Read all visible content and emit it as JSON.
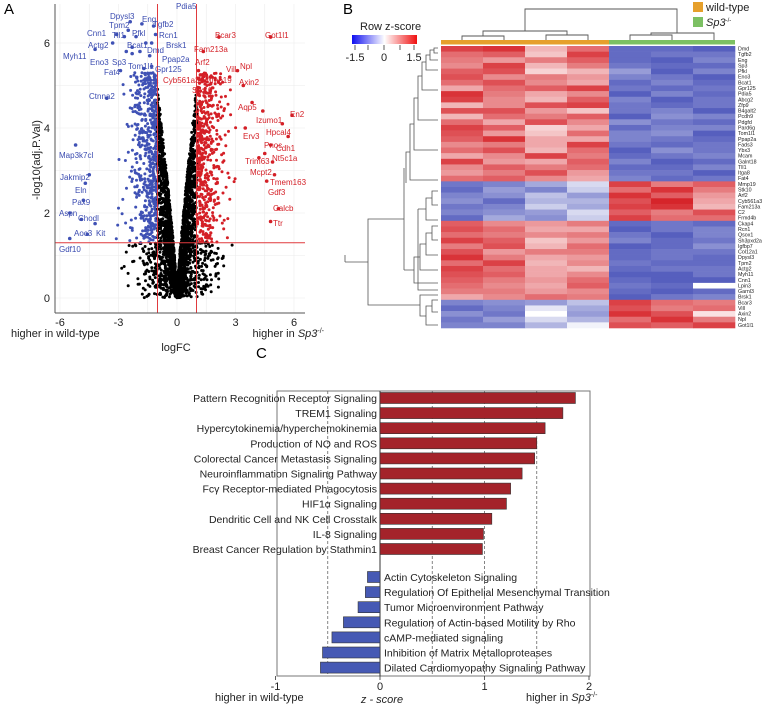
{
  "panels": {
    "a": "A",
    "b": "B",
    "c": "C"
  },
  "chart_data": [
    {
      "type": "scatter",
      "title": "",
      "xlabel": "logFC",
      "ylabel": "-log10(adj.P.Val)",
      "xlim": [
        -6.3,
        6.3
      ],
      "ylim": [
        0,
        6.6
      ],
      "xticks": [
        "-6",
        "-3",
        "0",
        "3",
        "6"
      ],
      "yticks": [
        "0",
        "2",
        "4",
        "6"
      ],
      "x_left_annotation": "higher in wild-type",
      "x_right_annotation_prefix": "higher in ",
      "x_right_annotation_genotype": "Sp3",
      "x_right_annotation_sup": "-/-",
      "thresholds": {
        "logFC": [
          -1,
          1
        ],
        "neg_log10_p": 1.3
      },
      "grid": true,
      "colors": {
        "down": "#3f51b5",
        "up": "#d41f26",
        "ns": "#000000",
        "threshold": "#e03a3e"
      },
      "labeled_down": [
        {
          "gene": "Dpysl3",
          "logFC": -2.4,
          "p": 6.5
        },
        {
          "gene": "Tpm2",
          "logFC": -2.5,
          "p": 6.3
        },
        {
          "gene": "Eng",
          "logFC": -1.8,
          "p": 6.45
        },
        {
          "gene": "Tgfb2",
          "logFC": -1.2,
          "p": 6.4
        },
        {
          "gene": "Pdia5",
          "logFC": -1.1,
          "p": 6.2
        },
        {
          "gene": "Cnn1",
          "logFC": -3.1,
          "p": 6.2
        },
        {
          "gene": "Tll1",
          "logFC": -2.7,
          "p": 6.15
        },
        {
          "gene": "Pfkl",
          "logFC": -2.1,
          "p": 6.15
        },
        {
          "gene": "Rcn1",
          "logFC": -1.3,
          "p": 6.0
        },
        {
          "gene": "Actg2",
          "logFC": -3.3,
          "p": 6.0
        },
        {
          "gene": "Bcat1",
          "logFC": -2.3,
          "p": 5.9
        },
        {
          "gene": "Brsk1",
          "logFC": -1.6,
          "p": 6.0
        },
        {
          "gene": "Dmd",
          "logFC": -1.9,
          "p": 5.8
        },
        {
          "gene": "Myh11",
          "logFC": -4.2,
          "p": 5.85
        },
        {
          "gene": "Eno3",
          "logFC": -2.6,
          "p": 5.8
        },
        {
          "gene": "Sp3",
          "logFC": -2.3,
          "p": 5.75
        },
        {
          "gene": "Ppap2a",
          "logFC": -1.4,
          "p": 5.7
        },
        {
          "gene": "Tom1l1",
          "logFC": -1.7,
          "p": 5.4
        },
        {
          "gene": "Gpr125",
          "logFC": -1.3,
          "p": 5.45
        },
        {
          "gene": "Fat4",
          "logFC": -2.9,
          "p": 5.35
        },
        {
          "gene": "Ctnna2",
          "logFC": -3.6,
          "p": 4.7
        },
        {
          "gene": "Map3k7cl",
          "logFC": -5.2,
          "p": 3.6
        },
        {
          "gene": "Jakmip2",
          "logFC": -4.5,
          "p": 2.9
        },
        {
          "gene": "Eln",
          "logFC": -4.7,
          "p": 2.7
        },
        {
          "gene": "Pax9",
          "logFC": -4.8,
          "p": 2.3
        },
        {
          "gene": "Aspn",
          "logFC": -5.5,
          "p": 2.0
        },
        {
          "gene": "Chodl",
          "logFC": -4.9,
          "p": 1.85
        },
        {
          "gene": "Kit",
          "logFC": -4.2,
          "p": 1.75
        },
        {
          "gene": "Aoc3",
          "logFC": -4.6,
          "p": 1.5
        },
        {
          "gene": "Gdf10",
          "logFC": -5.5,
          "p": 1.4
        }
      ],
      "labeled_up": [
        {
          "gene": "Bcar3",
          "logFC": 2.15,
          "p": 6.14
        },
        {
          "gene": "Got1l1",
          "logFC": 4.8,
          "p": 6.14
        },
        {
          "gene": "Fam213a",
          "logFC": 1.35,
          "p": 5.8
        },
        {
          "gene": "Arf2",
          "logFC": 1.1,
          "p": 5.35
        },
        {
          "gene": "Vill",
          "logFC": 2.7,
          "p": 5.2
        },
        {
          "gene": "Npl",
          "logFC": 3.1,
          "p": 5.35
        },
        {
          "gene": "Cyb561a3",
          "logFC": 1.2,
          "p": 5.25
        },
        {
          "gene": "Mmp19",
          "logFC": 1.3,
          "p": 5.15
        },
        {
          "gene": "Axin2",
          "logFC": 3.4,
          "p": 5.0
        },
        {
          "gene": "Stk10",
          "logFC": 1.1,
          "p": 4.95
        },
        {
          "gene": "Aqp5",
          "logFC": 3.85,
          "p": 4.6
        },
        {
          "gene": "Izumo1",
          "logFC": 4.4,
          "p": 4.4
        },
        {
          "gene": "En2",
          "logFC": 5.9,
          "p": 4.3
        },
        {
          "gene": "Hpcal4",
          "logFC": 5.4,
          "p": 4.1
        },
        {
          "gene": "Erv3",
          "logFC": 3.5,
          "p": 4.0
        },
        {
          "gene": "Pnoc",
          "logFC": 4.8,
          "p": 3.6
        },
        {
          "gene": "Cdh1",
          "logFC": 5.7,
          "p": 3.8
        },
        {
          "gene": "Nt5c1a",
          "logFC": 4.9,
          "p": 3.2
        },
        {
          "gene": "Trim63",
          "logFC": 4.5,
          "p": 3.4
        },
        {
          "gene": "Mcpt2",
          "logFC": 4.2,
          "p": 3.3
        },
        {
          "gene": "Tmem163",
          "logFC": 5.0,
          "p": 2.9
        },
        {
          "gene": "Gdf3",
          "logFC": 4.6,
          "p": 2.75
        },
        {
          "gene": "Calcb",
          "logFC": 5.2,
          "p": 2.1
        },
        {
          "gene": "Ttr",
          "logFC": 4.8,
          "p": 1.8
        }
      ]
    },
    {
      "type": "heatmap",
      "legend_title": "Row z-score",
      "scale_ticks": [
        "-1.5",
        "0",
        "1.5"
      ],
      "zlim": [
        -1.5,
        1.5
      ],
      "colors": {
        "low": "#3c46b4",
        "mid": "#ffffff",
        "high": "#d7232a"
      },
      "groups": [
        {
          "name": "wild-type",
          "color": "#e6a02c",
          "n": 4
        },
        {
          "name": "Sp3",
          "sup": "-/-",
          "color": "#7cc063",
          "n": 3
        }
      ],
      "rows": [
        "Dmd",
        "Tgfb2",
        "Eng",
        "Sp3",
        "Pfkl",
        "Eno3",
        "Bcat1",
        "Gpr125",
        "Pdia5",
        "Abcg2",
        "Zfp9",
        "B4galt2",
        "Pcdh9",
        "Pdgfd",
        "Pard6g",
        "Tom1l1",
        "Ppap2a",
        "Fads3",
        "Ybx3",
        "Mcam",
        "Galnt18",
        "Tll1",
        "Itga8",
        "Fat4",
        "Mmp19",
        "Stk10",
        "Arf2",
        "Cyb561a3",
        "Fam213a",
        "C2",
        "Frmd4b",
        "Ckap4",
        "Rcn1",
        "Qsox1",
        "Sh3pxd2a",
        "Igfbp7",
        "Col12a1",
        "Dpysl3",
        "Tpm2",
        "Actg2",
        "Myh11",
        "Cnn1",
        "Lpin3",
        "Garnl3",
        "Brsk1",
        "Bcar3",
        "Vill",
        "Axin2",
        "Npl",
        "Got1l1"
      ],
      "values": [
        [
          1.3,
          1.4,
          0.5,
          1.0,
          -1.2,
          -1.2,
          -1.3
        ],
        [
          1.0,
          1.1,
          0.4,
          1.3,
          -1.2,
          -1.1,
          -1.1
        ],
        [
          0.9,
          0.7,
          0.9,
          1.1,
          -1.2,
          -1.3,
          -1.0
        ],
        [
          0.8,
          1.3,
          0.5,
          0.9,
          -1.1,
          -1.2,
          -1.2
        ],
        [
          1.1,
          1.2,
          0.3,
          0.5,
          -0.8,
          -1.3,
          -1.0
        ],
        [
          1.2,
          0.8,
          0.9,
          0.7,
          -1.0,
          -1.1,
          -1.3
        ],
        [
          1.0,
          1.2,
          0.8,
          0.6,
          -1.2,
          -1.0,
          -1.2
        ],
        [
          0.6,
          1.0,
          1.1,
          1.3,
          -1.1,
          -1.2,
          -1.1
        ],
        [
          1.4,
          0.9,
          0.6,
          0.8,
          -1.3,
          -1.0,
          -1.2
        ],
        [
          1.3,
          0.8,
          0.5,
          1.1,
          -1.0,
          -1.3,
          -1.1
        ],
        [
          0.5,
          0.8,
          1.2,
          1.3,
          -1.1,
          -1.2,
          -1.1
        ],
        [
          1.2,
          1.2,
          0.7,
          0.4,
          -1.1,
          -1.0,
          -1.3
        ],
        [
          0.5,
          1.0,
          0.9,
          1.1,
          -1.3,
          -0.9,
          -1.0
        ],
        [
          1.0,
          0.6,
          1.2,
          0.8,
          -0.9,
          -1.1,
          -1.2
        ],
        [
          1.3,
          1.1,
          0.3,
          0.6,
          -1.2,
          -1.0,
          -1.0
        ],
        [
          1.2,
          0.7,
          0.4,
          1.0,
          -1.0,
          -0.9,
          -1.3
        ],
        [
          1.1,
          1.4,
          0.6,
          0.6,
          -1.0,
          -1.1,
          -1.2
        ],
        [
          0.8,
          0.9,
          0.6,
          1.3,
          -1.1,
          -1.2,
          -1.1
        ],
        [
          1.0,
          1.2,
          0.5,
          1.0,
          -1.3,
          -0.9,
          -1.1
        ],
        [
          0.6,
          0.8,
          1.3,
          0.9,
          -1.2,
          -1.1,
          -1.0
        ],
        [
          1.3,
          0.7,
          0.6,
          1.1,
          -1.0,
          -1.3,
          -1.2
        ],
        [
          0.8,
          1.1,
          0.9,
          1.0,
          -1.2,
          -1.2,
          -1.0
        ],
        [
          0.7,
          0.9,
          1.2,
          0.7,
          -1.1,
          -1.1,
          -1.3
        ],
        [
          1.0,
          1.1,
          0.8,
          0.6,
          -1.0,
          -1.2,
          -1.1
        ],
        [
          -1.1,
          -1.0,
          -0.7,
          -0.3,
          1.3,
          0.9,
          1.1
        ],
        [
          -1.2,
          -0.8,
          -1.0,
          -0.4,
          1.0,
          1.4,
          0.9
        ],
        [
          -1.0,
          -0.9,
          -0.5,
          -0.8,
          1.4,
          1.1,
          0.7
        ],
        [
          -0.9,
          -1.2,
          -0.6,
          -0.6,
          1.2,
          1.5,
          0.6
        ],
        [
          -1.1,
          -1.0,
          -0.4,
          -0.7,
          1.3,
          1.4,
          0.5
        ],
        [
          -1.0,
          -0.9,
          -0.8,
          -0.3,
          1.1,
          0.9,
          1.2
        ],
        [
          -1.2,
          -0.7,
          -0.9,
          -0.4,
          1.3,
          1.0,
          1.0
        ],
        [
          1.1,
          0.8,
          0.7,
          0.9,
          -1.2,
          -1.1,
          -1.2
        ],
        [
          1.2,
          1.0,
          0.6,
          0.6,
          -1.3,
          -1.1,
          -1.0
        ],
        [
          1.0,
          0.9,
          0.8,
          0.9,
          -1.1,
          -1.3,
          -1.0
        ],
        [
          1.3,
          1.1,
          0.4,
          0.7,
          -1.0,
          -1.2,
          -1.1
        ],
        [
          0.9,
          1.2,
          0.5,
          1.0,
          -1.3,
          -1.2,
          -0.9
        ],
        [
          1.2,
          0.7,
          0.9,
          0.9,
          -1.2,
          -1.1,
          -1.1
        ],
        [
          1.4,
          0.9,
          0.6,
          0.7,
          -1.2,
          -1.1,
          -1.2
        ],
        [
          1.0,
          1.3,
          0.5,
          0.8,
          -1.1,
          -1.2,
          -1.2
        ],
        [
          1.3,
          1.0,
          0.6,
          0.5,
          -1.2,
          -1.1,
          -1.1
        ],
        [
          1.2,
          1.1,
          0.6,
          0.8,
          -1.3,
          -1.3,
          -1.1
        ],
        [
          1.1,
          0.9,
          0.7,
          1.0,
          -1.2,
          -1.3,
          -1.3
        ],
        [
          1.0,
          0.8,
          0.6,
          1.1,
          -1.1,
          -1.2,
          0.0
        ],
        [
          0.9,
          0.9,
          0.7,
          0.8,
          -1.2,
          -1.3,
          -1.2
        ],
        [
          0.6,
          0.8,
          1.0,
          0.9,
          -1.3,
          -1.1,
          -1.0
        ],
        [
          -1.0,
          -0.9,
          -0.8,
          -0.5,
          1.3,
          1.0,
          0.9
        ],
        [
          -1.2,
          -1.0,
          -0.2,
          -0.7,
          1.2,
          0.9,
          1.0
        ],
        [
          -0.9,
          -1.1,
          0.0,
          -0.8,
          1.4,
          1.2,
          0.2
        ],
        [
          -1.1,
          -0.8,
          -0.3,
          -0.6,
          1.0,
          1.4,
          0.9
        ],
        [
          -1.0,
          -1.0,
          -0.6,
          -0.1,
          1.2,
          1.1,
          1.3
        ]
      ]
    },
    {
      "type": "bar",
      "orientation": "horizontal",
      "xlabel": "z - score",
      "xlim": [
        -1,
        2
      ],
      "xticks": [
        "-1",
        "0",
        "1",
        "2"
      ],
      "x_left_annotation": "higher in wild-type",
      "x_right_annotation_prefix": "higher in ",
      "x_right_annotation_genotype": "Sp3",
      "x_right_annotation_sup": "-/-",
      "colors": {
        "positive": "#a4232a",
        "negative": "#4659b4"
      },
      "categories": [
        "Pattern Recognition Receptor Signaling",
        "TREM1 Signaling",
        "Hypercytokinemia/hyperchemokinemia",
        "Production of NO and ROS",
        "Colorectal Cancer Metastasis Signaling",
        "Neuroinflammation Signaling Pathway",
        "Fcγ Receptor-mediated Phagocytosis",
        "HIF1α Signaling",
        "Dendritic Cell and NK Cell Crosstalk",
        "IL-8 Signaling",
        "Breast Cancer Regulation by Stathmin1",
        "Actin Cytoskeleton Signaling",
        "Regulation Of Epithelial Mesenchymal Transition",
        "Tumor Microenvironment Pathway",
        "Regulation of Actin-based Motility by Rho",
        "cAMP-mediated signaling",
        "Inhibition of Matrix Metalloproteases",
        "Dilated Cardiomyopathy Signaling Pathway"
      ],
      "values": [
        1.87,
        1.75,
        1.58,
        1.5,
        1.48,
        1.36,
        1.25,
        1.21,
        1.07,
        0.99,
        0.98,
        -0.12,
        -0.14,
        -0.21,
        -0.35,
        -0.46,
        -0.55,
        -0.57
      ]
    }
  ]
}
